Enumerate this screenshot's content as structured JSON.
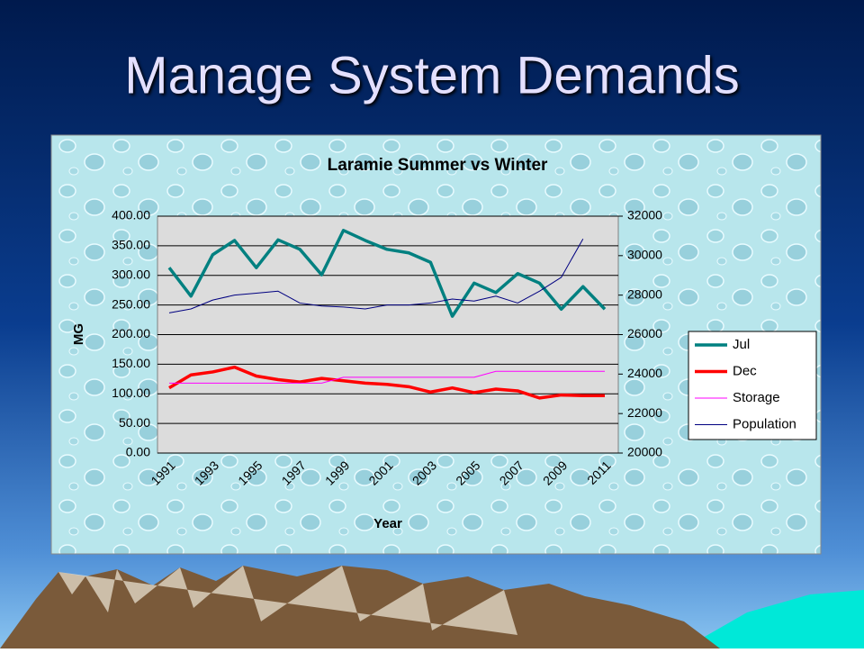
{
  "slide": {
    "title": "Manage System Demands"
  },
  "chart_data": {
    "type": "line",
    "title": "Laramie Summer vs Winter",
    "x_label": "Year",
    "y_label": "MG",
    "categories": [
      "1991",
      null,
      "1993",
      null,
      "1995",
      null,
      "1997",
      null,
      "1999",
      null,
      "2001",
      null,
      "2003",
      null,
      "2005",
      null,
      "2007",
      null,
      "2009",
      null,
      "2011"
    ],
    "series": [
      {
        "name": "Jul",
        "color": "#008080",
        "width": 3.5,
        "values": [
          313,
          265,
          335,
          359,
          313,
          360,
          344,
          301,
          376,
          359,
          344,
          338,
          322,
          231,
          287,
          271,
          303,
          287,
          243,
          281,
          243
        ]
      },
      {
        "name": "Dec",
        "color": "#ff0000",
        "width": 3.5,
        "values": [
          110,
          132,
          137,
          145,
          130,
          124,
          120,
          126,
          122,
          118,
          116,
          112,
          103,
          110,
          102,
          108,
          105,
          93,
          98,
          97,
          97
        ]
      },
      {
        "name": "Storage",
        "color": "#ff00ff",
        "width": 1,
        "values": [
          118,
          118,
          118,
          118,
          118,
          118,
          118,
          118,
          128,
          128,
          128,
          128,
          128,
          128,
          128,
          138,
          138,
          138,
          138,
          138,
          138
        ]
      },
      {
        "name": "Population",
        "color": "#000080",
        "width": 1,
        "axis": "y2",
        "values": [
          27100,
          27300,
          27750,
          28000,
          28100,
          28200,
          27600,
          27450,
          27400,
          27300,
          27500,
          27500,
          27600,
          27800,
          27700,
          27950,
          27600,
          28200,
          28900,
          30850,
          null
        ]
      }
    ],
    "ylim": [
      0,
      400
    ],
    "yticks": [
      {
        "value": 0,
        "label": "0.00"
      },
      {
        "value": 50,
        "label": "50.00"
      },
      {
        "value": 100,
        "label": "100.00"
      },
      {
        "value": 150,
        "label": "150.00"
      },
      {
        "value": 200,
        "label": "200.00"
      },
      {
        "value": 250,
        "label": "250.00"
      },
      {
        "value": 300,
        "label": "300.00"
      },
      {
        "value": 350,
        "label": "350.00"
      },
      {
        "value": 400,
        "label": "400.00"
      }
    ],
    "y2lim": [
      20000,
      32000
    ],
    "y2ticks": [
      20000,
      22000,
      24000,
      26000,
      28000,
      30000,
      32000
    ],
    "grid": true,
    "legend": "right"
  }
}
